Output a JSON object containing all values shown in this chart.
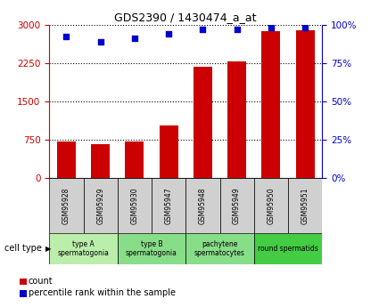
{
  "title": "GDS2390 / 1430474_a_at",
  "samples": [
    "GSM95928",
    "GSM95929",
    "GSM95930",
    "GSM95947",
    "GSM95948",
    "GSM95949",
    "GSM95950",
    "GSM95951"
  ],
  "counts": [
    710,
    660,
    710,
    1020,
    2180,
    2280,
    2870,
    2890
  ],
  "percentile_ranks": [
    92,
    89,
    91,
    94,
    97,
    97,
    98,
    98
  ],
  "bar_color": "#cc0000",
  "dot_color": "#0000cc",
  "left_yticks": [
    0,
    750,
    1500,
    2250,
    3000
  ],
  "right_yticks": [
    0,
    25,
    50,
    75,
    100
  ],
  "ylim_left": [
    0,
    3000
  ],
  "ylim_right": [
    0,
    100
  ],
  "groups": [
    {
      "label": "type A\nspermatogonia",
      "indices": [
        0,
        1
      ],
      "color": "#bbeeaa"
    },
    {
      "label": "type B\nspermatogonia",
      "indices": [
        2,
        3
      ],
      "color": "#88dd88"
    },
    {
      "label": "pachytene\nspermatocytes",
      "indices": [
        4,
        5
      ],
      "color": "#88dd88"
    },
    {
      "label": "round spermatids",
      "indices": [
        6,
        7
      ],
      "color": "#44cc44"
    }
  ],
  "cell_type_label": "cell type",
  "legend_count_label": "count",
  "legend_percentile_label": "percentile rank within the sample",
  "left_axis_color": "#cc0000",
  "right_axis_color": "#0000cc",
  "grid_color": "#000000",
  "sample_box_color": "#d0d0d0",
  "bg_color": "#ffffff"
}
